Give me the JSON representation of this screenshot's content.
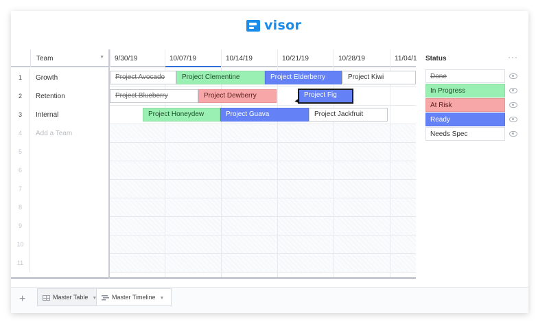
{
  "app": {
    "logo_text": "visor",
    "brand_color": "#1c8ce8"
  },
  "grid": {
    "team_header": "Team",
    "dates": [
      "9/30/19",
      "10/07/19",
      "10/14/19",
      "10/21/19",
      "10/28/19",
      "11/04/1"
    ],
    "rows": [
      {
        "num": "1",
        "team": "Growth"
      },
      {
        "num": "2",
        "team": "Retention"
      },
      {
        "num": "3",
        "team": "Internal"
      },
      {
        "num": "4",
        "team": "Add a Team"
      },
      {
        "num": "5",
        "team": ""
      },
      {
        "num": "6",
        "team": ""
      },
      {
        "num": "7",
        "team": ""
      },
      {
        "num": "8",
        "team": ""
      },
      {
        "num": "9",
        "team": ""
      },
      {
        "num": "10",
        "team": ""
      },
      {
        "num": "11",
        "team": ""
      }
    ]
  },
  "projects": [
    {
      "label": "Project Avocado",
      "status": "done"
    },
    {
      "label": "Project Clementine",
      "status": "progress"
    },
    {
      "label": "Project Elderberry",
      "status": "ready"
    },
    {
      "label": "Project Kiwi",
      "status": "spec"
    },
    {
      "label": "Project Blueberry",
      "status": "done"
    },
    {
      "label": "Project Dewberry",
      "status": "risk"
    },
    {
      "label": "Project Fig",
      "status": "ready"
    },
    {
      "label": "Project Honeydew",
      "status": "progress"
    },
    {
      "label": "Project Guava",
      "status": "ready"
    },
    {
      "label": "Project Jackfruit",
      "status": "spec"
    }
  ],
  "status_panel": {
    "title": "Status",
    "more_icon": "ellipsis-icon",
    "items": [
      {
        "label": "Done",
        "color": "#ffffff"
      },
      {
        "label": "In Progress",
        "color": "#9af0b2"
      },
      {
        "label": "At Risk",
        "color": "#f7a7a7"
      },
      {
        "label": "Ready",
        "color": "#6481f5"
      },
      {
        "label": "Needs Spec",
        "color": "#ffffff"
      }
    ]
  },
  "footer": {
    "add_icon": "plus-icon",
    "tabs": [
      {
        "label": "Master Table",
        "icon": "table-icon"
      },
      {
        "label": "Master Timeline",
        "icon": "timeline-icon"
      }
    ]
  }
}
